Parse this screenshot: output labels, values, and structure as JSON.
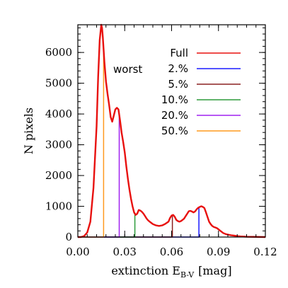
{
  "chart_data": {
    "type": "line",
    "xlabel": "extinction E",
    "xlabel_sub": "B-V",
    "xlabel_unit": "[mag]",
    "ylabel": "N pixels",
    "xlim": [
      0.0,
      0.12
    ],
    "ylim": [
      0,
      6900
    ],
    "xticks": [
      0.0,
      0.03,
      0.06,
      0.09,
      0.12
    ],
    "xtick_labels": [
      "0.00",
      "0.03",
      "0.06",
      "0.09",
      "0.12"
    ],
    "yticks": [
      0,
      1000,
      2000,
      3000,
      4000,
      5000,
      6000
    ],
    "ytick_labels": [
      "0",
      "1000",
      "2000",
      "3000",
      "4000",
      "5000",
      "6000"
    ],
    "legend_header": "worst",
    "legend_placement": "top-right",
    "series": [
      {
        "name": "Full",
        "color": "#e8110f",
        "points": [
          [
            0.002,
            0
          ],
          [
            0.004,
            30
          ],
          [
            0.006,
            150
          ],
          [
            0.008,
            500
          ],
          [
            0.01,
            1600
          ],
          [
            0.012,
            3600
          ],
          [
            0.013,
            5200
          ],
          [
            0.014,
            6400
          ],
          [
            0.015,
            6900
          ],
          [
            0.0155,
            6800
          ],
          [
            0.016,
            6500
          ],
          [
            0.017,
            5700
          ],
          [
            0.018,
            5050
          ],
          [
            0.019,
            4650
          ],
          [
            0.02,
            4300
          ],
          [
            0.021,
            3900
          ],
          [
            0.022,
            3750
          ],
          [
            0.023,
            3950
          ],
          [
            0.024,
            4150
          ],
          [
            0.025,
            4200
          ],
          [
            0.026,
            4150
          ],
          [
            0.027,
            3800
          ],
          [
            0.028,
            3400
          ],
          [
            0.029,
            3100
          ],
          [
            0.03,
            2750
          ],
          [
            0.031,
            2300
          ],
          [
            0.032,
            1900
          ],
          [
            0.033,
            1550
          ],
          [
            0.034,
            1250
          ],
          [
            0.035,
            1000
          ],
          [
            0.036,
            800
          ],
          [
            0.037,
            720
          ],
          [
            0.038,
            760
          ],
          [
            0.039,
            880
          ],
          [
            0.04,
            860
          ],
          [
            0.041,
            820
          ],
          [
            0.042,
            760
          ],
          [
            0.043,
            680
          ],
          [
            0.044,
            600
          ],
          [
            0.045,
            540
          ],
          [
            0.046,
            500
          ],
          [
            0.047,
            460
          ],
          [
            0.048,
            420
          ],
          [
            0.05,
            380
          ],
          [
            0.052,
            360
          ],
          [
            0.054,
            380
          ],
          [
            0.056,
            430
          ],
          [
            0.058,
            500
          ],
          [
            0.059,
            620
          ],
          [
            0.06,
            700
          ],
          [
            0.061,
            720
          ],
          [
            0.062,
            660
          ],
          [
            0.063,
            560
          ],
          [
            0.064,
            520
          ],
          [
            0.065,
            500
          ],
          [
            0.066,
            520
          ],
          [
            0.067,
            560
          ],
          [
            0.068,
            600
          ],
          [
            0.069,
            680
          ],
          [
            0.07,
            760
          ],
          [
            0.071,
            840
          ],
          [
            0.072,
            850
          ],
          [
            0.073,
            830
          ],
          [
            0.074,
            800
          ],
          [
            0.075,
            830
          ],
          [
            0.076,
            900
          ],
          [
            0.077,
            950
          ],
          [
            0.078,
            980
          ],
          [
            0.079,
            1000
          ],
          [
            0.08,
            980
          ],
          [
            0.081,
            940
          ],
          [
            0.082,
            800
          ],
          [
            0.083,
            650
          ],
          [
            0.084,
            500
          ],
          [
            0.085,
            420
          ],
          [
            0.086,
            360
          ],
          [
            0.087,
            330
          ],
          [
            0.088,
            310
          ],
          [
            0.089,
            290
          ],
          [
            0.09,
            250
          ],
          [
            0.091,
            210
          ],
          [
            0.092,
            170
          ],
          [
            0.093,
            130
          ],
          [
            0.094,
            110
          ],
          [
            0.095,
            90
          ],
          [
            0.096,
            80
          ],
          [
            0.098,
            60
          ],
          [
            0.1,
            45
          ],
          [
            0.102,
            30
          ],
          [
            0.104,
            20
          ],
          [
            0.106,
            15
          ],
          [
            0.108,
            10
          ]
        ]
      },
      {
        "name": "2.%",
        "color": "#1a1aff",
        "cutoff": 0.0775
      },
      {
        "name": "5.%",
        "color": "#8b2020",
        "cutoff": 0.0605
      },
      {
        "name": "10.%",
        "color": "#2e9b3c",
        "cutoff": 0.0365
      },
      {
        "name": "20.%",
        "color": "#a020f0",
        "cutoff": 0.0265
      },
      {
        "name": "50.%",
        "color": "#ff9a1f",
        "cutoff": 0.0165
      }
    ]
  }
}
